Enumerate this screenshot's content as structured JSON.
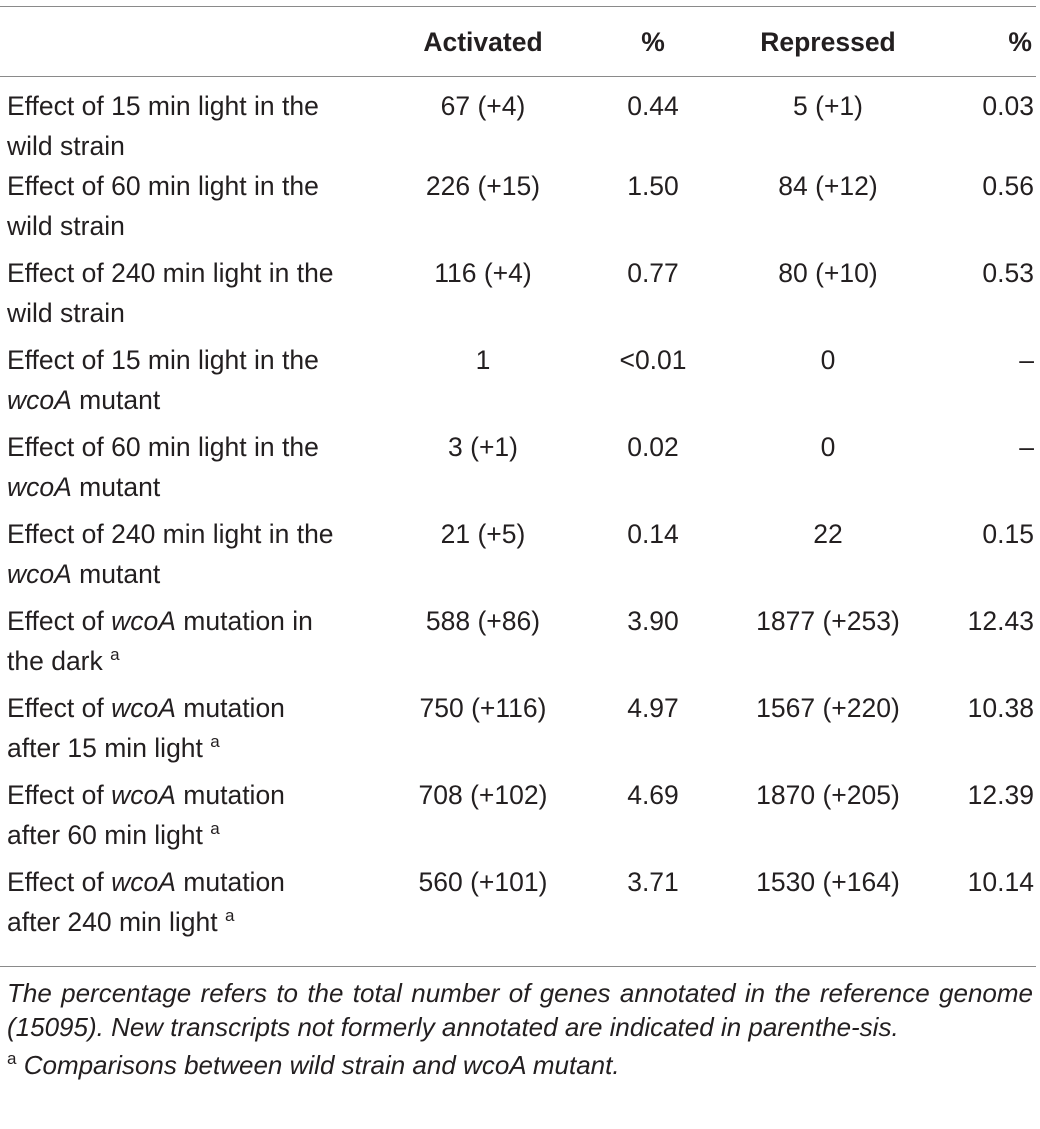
{
  "table": {
    "headers": [
      "",
      "Activated",
      "%",
      "Repressed",
      "%"
    ],
    "rows": [
      {
        "pre": "Effect of 15 min light in the",
        "line2_pre": "wild strain",
        "line2_ital": "",
        "line2_post": "",
        "sup": "",
        "activated": "67 (+4)",
        "pct_a": "0.44",
        "repressed": "5 (+1)",
        "pct_r": "0.03"
      },
      {
        "pre": "Effect of 60 min light in the",
        "line2_pre": "wild strain",
        "line2_ital": "",
        "line2_post": "",
        "sup": "",
        "activated": "226 (+15)",
        "pct_a": "1.50",
        "repressed": "84 (+12)",
        "pct_r": "0.56"
      },
      {
        "pre": "Effect of 240 min light in the",
        "line2_pre": "wild strain",
        "line2_ital": "",
        "line2_post": "",
        "sup": "",
        "activated": "116 (+4)",
        "pct_a": "0.77",
        "repressed": "80 (+10)",
        "pct_r": "0.53"
      },
      {
        "pre": "Effect of 15 min light in the",
        "line2_pre": "",
        "line2_ital": "wcoA",
        "line2_post": " mutant",
        "sup": "",
        "activated": "1",
        "pct_a": "<0.01",
        "repressed": "0",
        "pct_r": "–"
      },
      {
        "pre": "Effect of 60 min light in the",
        "line2_pre": "",
        "line2_ital": "wcoA",
        "line2_post": " mutant",
        "sup": "",
        "activated": "3 (+1)",
        "pct_a": "0.02",
        "repressed": "0",
        "pct_r": "–"
      },
      {
        "pre": "Effect of 240 min light in the",
        "line2_pre": "",
        "line2_ital": "wcoA",
        "line2_post": " mutant",
        "sup": "",
        "activated": "21 (+5)",
        "pct_a": "0.14",
        "repressed": "22",
        "pct_r": "0.15"
      },
      {
        "pre": "Effect of ",
        "ital": "wcoA",
        "post": " mutation in",
        "line2_pre": "the dark",
        "line2_ital": "",
        "line2_post": "",
        "sup": "a",
        "activated": "588 (+86)",
        "pct_a": "3.90",
        "repressed": "1877 (+253)",
        "pct_r": "12.43"
      },
      {
        "pre": "Effect of ",
        "ital": "wcoA",
        "post": " mutation",
        "line2_pre": "after 15 min light",
        "line2_ital": "",
        "line2_post": "",
        "sup": "a",
        "activated": "750 (+116)",
        "pct_a": "4.97",
        "repressed": "1567 (+220)",
        "pct_r": "10.38"
      },
      {
        "pre": "Effect of ",
        "ital": "wcoA",
        "post": " mutation",
        "line2_pre": "after 60 min light",
        "line2_ital": "",
        "line2_post": "",
        "sup": "a",
        "activated": "708 (+102)",
        "pct_a": "4.69",
        "repressed": "1870 (+205)",
        "pct_r": "12.39"
      },
      {
        "pre": "Effect of ",
        "ital": "wcoA",
        "post": " mutation",
        "line2_pre": "after 240 min light",
        "line2_ital": "",
        "line2_post": "",
        "sup": "a",
        "activated": "560 (+101)",
        "pct_a": "3.71",
        "repressed": "1530 (+164)",
        "pct_r": "10.14"
      }
    ]
  },
  "footnotes": {
    "note": "The percentage refers to the total number of genes annotated in the reference genome (15095). New transcripts not formerly annotated are indicated in parenthe-sis.",
    "marker": "a",
    "footnote_a": "Comparisons between wild strain and wcoA mutant."
  }
}
